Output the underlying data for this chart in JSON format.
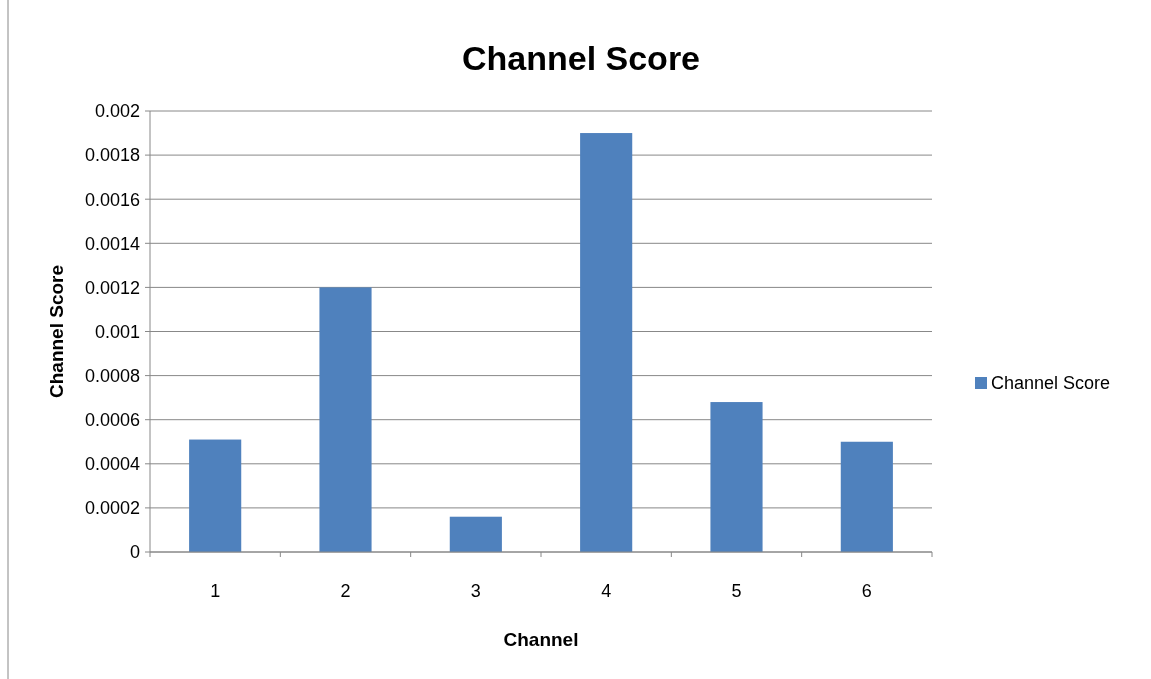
{
  "chart_data": {
    "type": "bar",
    "title": "Channel Score",
    "xlabel": "Channel",
    "ylabel": "Channel Score",
    "categories": [
      "1",
      "2",
      "3",
      "4",
      "5",
      "6"
    ],
    "series": [
      {
        "name": "Channel Score",
        "color": "#4f81bd",
        "values": [
          0.00051,
          0.0012,
          0.00016,
          0.0019,
          0.00068,
          0.0005
        ]
      }
    ],
    "ylim": [
      0,
      0.002
    ],
    "yticks": [
      0,
      0.0002,
      0.0004,
      0.0006,
      0.0008,
      0.001,
      0.0012,
      0.0014,
      0.0016,
      0.0018,
      0.002
    ],
    "grid": "y",
    "legend": "right"
  }
}
